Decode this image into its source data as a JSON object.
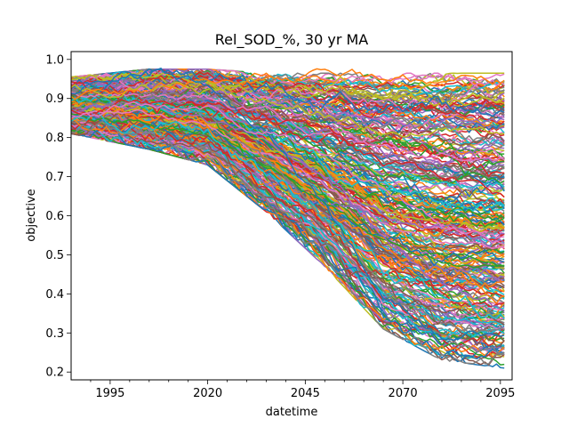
{
  "chart_data": {
    "type": "line",
    "title": "Rel_SOD_%, 30 yr MA",
    "xlabel": "datetime",
    "ylabel": "objective",
    "xlim": [
      1985,
      2098
    ],
    "ylim": [
      0.18,
      1.02
    ],
    "x_ticks": [
      1995,
      2020,
      2045,
      2070,
      2095
    ],
    "y_ticks": [
      0.2,
      0.3,
      0.4,
      0.5,
      0.6,
      0.7,
      0.8,
      0.9,
      1.0
    ],
    "grid": false,
    "legend": "none",
    "palette": [
      "#1f77b4",
      "#ff7f0e",
      "#2ca02c",
      "#d62728",
      "#9467bd",
      "#8c564b",
      "#e377c2",
      "#7f7f7f",
      "#bcbd22",
      "#17becf"
    ],
    "series_count": 300,
    "x": [
      1985,
      2005,
      2020,
      2035,
      2050,
      2065,
      2080,
      2096
    ],
    "envelope": {
      "upper": [
        0.95,
        0.97,
        0.97,
        0.96,
        0.96,
        0.96,
        0.96,
        0.96
      ],
      "median": [
        0.89,
        0.91,
        0.89,
        0.84,
        0.79,
        0.71,
        0.66,
        0.62
      ],
      "lower": [
        0.82,
        0.78,
        0.74,
        0.62,
        0.48,
        0.32,
        0.24,
        0.22
      ]
    },
    "series": [
      {
        "values": [
          0.9,
          0.92,
          0.95,
          0.95,
          0.96,
          0.95,
          0.95,
          0.95
        ]
      },
      {
        "values": [
          0.86,
          0.9,
          0.88,
          0.79,
          0.7,
          0.55,
          0.42,
          0.35
        ]
      },
      {
        "values": [
          0.88,
          0.91,
          0.87,
          0.74,
          0.6,
          0.42,
          0.28,
          0.24
        ]
      },
      {
        "values": [
          0.92,
          0.97,
          0.92,
          0.81,
          0.63,
          0.38,
          0.3,
          0.3
        ]
      },
      {
        "values": [
          0.87,
          0.9,
          0.89,
          0.86,
          0.82,
          0.74,
          0.7,
          0.66
        ]
      },
      {
        "values": [
          0.85,
          0.88,
          0.87,
          0.82,
          0.76,
          0.66,
          0.58,
          0.53
        ]
      }
    ]
  }
}
